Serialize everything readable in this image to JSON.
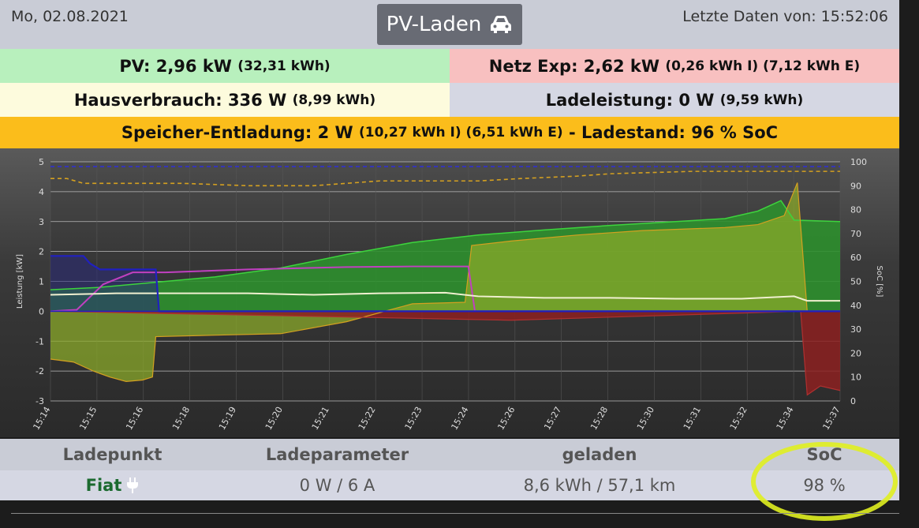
{
  "header": {
    "date": "Mo, 02.08.2021",
    "pv_button": "PV-Laden",
    "last_data": "Letzte Daten von: 15:52:06"
  },
  "summary": {
    "pv_main": "PV: 2,96 kW",
    "pv_sub": "(32,31 kWh)",
    "netz_main": "Netz Exp: 2,62 kW",
    "netz_sub": "(0,26 kWh I) (7,12 kWh E)",
    "haus_main": "Hausverbrauch: 336 W",
    "haus_sub": "(8,99 kWh)",
    "lade_main": "Ladeleistung: 0 W",
    "lade_sub": "(9,59 kWh)",
    "speicher_main": "Speicher-Entladung: 2 W",
    "speicher_sub": "(10,27 kWh I) (6,51 kWh E)",
    "speicher_tail": "- Ladestand: 96 % SoC"
  },
  "chart_data": {
    "type": "line",
    "ylabel": "Leistung [kW]",
    "y2label": "SoC [%]",
    "ylim": [
      -3,
      5
    ],
    "y2lim": [
      0,
      100
    ],
    "yticks": [
      "5",
      "4",
      "3",
      "2",
      "1",
      "0",
      "-1",
      "-2",
      "-3"
    ],
    "y2ticks": [
      "100",
      "90",
      "80",
      "70",
      "60",
      "50",
      "40",
      "30",
      "20",
      "10",
      "0"
    ],
    "xticks": [
      "15:14",
      "15:15",
      "15:16",
      "15:18",
      "15:19",
      "15:20",
      "15:21",
      "15:22",
      "15:23",
      "15:24",
      "15:26",
      "15:27",
      "15:28",
      "15:30",
      "15:31",
      "15:32",
      "15:34",
      "15:37"
    ],
    "x_range": [
      0,
      24
    ],
    "colors": {
      "pv": "#3dd43d",
      "haus": "#f0f0d0",
      "lade": "#c040c0",
      "netz": "#b03030",
      "speicher": "#d4a020",
      "ev": "#2020c0",
      "soc_line": "#d4a020",
      "soc_ev": "#3030d0"
    },
    "series": [
      {
        "key": "pv",
        "values": [
          [
            0,
            0.72
          ],
          [
            1.5,
            0.8
          ],
          [
            3,
            0.95
          ],
          [
            5,
            1.15
          ],
          [
            7,
            1.45
          ],
          [
            9,
            1.9
          ],
          [
            11,
            2.3
          ],
          [
            13,
            2.55
          ],
          [
            15,
            2.72
          ],
          [
            17,
            2.87
          ],
          [
            19,
            3.0
          ],
          [
            20.5,
            3.1
          ],
          [
            21.5,
            3.35
          ],
          [
            22.2,
            3.7
          ],
          [
            22.6,
            3.05
          ],
          [
            24,
            3.0
          ]
        ]
      },
      {
        "key": "haus",
        "values": [
          [
            0,
            0.55
          ],
          [
            2,
            0.6
          ],
          [
            4,
            0.6
          ],
          [
            6,
            0.6
          ],
          [
            8,
            0.55
          ],
          [
            10,
            0.6
          ],
          [
            12,
            0.62
          ],
          [
            13,
            0.5
          ],
          [
            15,
            0.45
          ],
          [
            17,
            0.45
          ],
          [
            19,
            0.42
          ],
          [
            21,
            0.42
          ],
          [
            22.6,
            0.5
          ],
          [
            23,
            0.35
          ],
          [
            24,
            0.35
          ]
        ]
      },
      {
        "key": "lade",
        "values": [
          [
            0,
            0
          ],
          [
            0.8,
            0.05
          ],
          [
            1.6,
            0.9
          ],
          [
            2.5,
            1.3
          ],
          [
            3.5,
            1.3
          ],
          [
            6,
            1.4
          ],
          [
            9,
            1.48
          ],
          [
            11,
            1.5
          ],
          [
            12.7,
            1.5
          ],
          [
            12.9,
            0.0
          ],
          [
            24,
            0.0
          ]
        ]
      },
      {
        "key": "speicher",
        "values": [
          [
            0,
            -1.6
          ],
          [
            0.7,
            -1.7
          ],
          [
            1.3,
            -2.0
          ],
          [
            1.8,
            -2.2
          ],
          [
            2.3,
            -2.35
          ],
          [
            2.8,
            -2.3
          ],
          [
            3.1,
            -2.2
          ],
          [
            3.2,
            -0.85
          ],
          [
            5,
            -0.8
          ],
          [
            7,
            -0.75
          ],
          [
            9,
            -0.35
          ],
          [
            11,
            0.25
          ],
          [
            12.6,
            0.3
          ],
          [
            12.8,
            2.2
          ],
          [
            14,
            2.35
          ],
          [
            16,
            2.55
          ],
          [
            18,
            2.7
          ],
          [
            20.5,
            2.8
          ],
          [
            21.5,
            2.9
          ],
          [
            22.3,
            3.2
          ],
          [
            22.7,
            4.3
          ],
          [
            23,
            0.0
          ],
          [
            24,
            0.0
          ]
        ]
      },
      {
        "key": "netz",
        "values": [
          [
            0,
            0
          ],
          [
            14,
            -0.3
          ],
          [
            22.8,
            0
          ],
          [
            23,
            -2.8
          ],
          [
            23.4,
            -2.5
          ],
          [
            24,
            -2.65
          ]
        ]
      },
      {
        "key": "ev",
        "values": [
          [
            0,
            1.85
          ],
          [
            1,
            1.85
          ],
          [
            1.2,
            1.6
          ],
          [
            1.5,
            1.4
          ],
          [
            3.2,
            1.4
          ],
          [
            3.3,
            0.0
          ],
          [
            24,
            0.0
          ]
        ]
      },
      {
        "key": "soc_line",
        "values": [
          [
            0,
            93
          ],
          [
            0.5,
            93
          ],
          [
            1,
            91
          ],
          [
            3.5,
            91
          ],
          [
            4,
            91
          ],
          [
            6,
            90
          ],
          [
            8,
            90
          ],
          [
            9,
            91
          ],
          [
            10,
            92
          ],
          [
            13,
            92
          ],
          [
            14.3,
            93
          ],
          [
            16,
            94
          ],
          [
            17,
            95
          ],
          [
            19.5,
            96
          ],
          [
            24,
            96
          ]
        ]
      },
      {
        "key": "soc_ev",
        "values": [
          [
            0,
            98
          ],
          [
            24,
            98
          ]
        ]
      }
    ]
  },
  "table": {
    "headers": [
      "Ladepunkt",
      "Ladeparameter",
      "geladen",
      "SoC"
    ],
    "row": {
      "name": "Fiat",
      "params": "0 W / 6 A",
      "geladen": "8,6 kWh / 57,1 km",
      "soc": "98 %"
    }
  },
  "icons": {
    "car": "car-icon",
    "plug": "plug-icon"
  }
}
